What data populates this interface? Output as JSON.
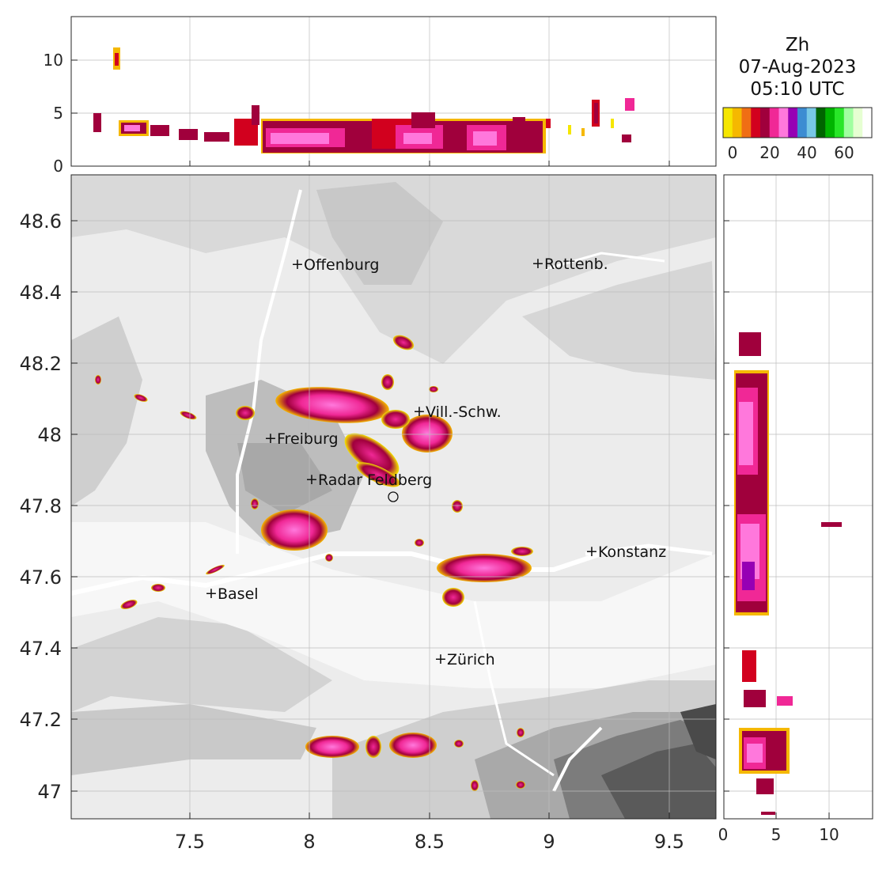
{
  "title": {
    "variable": "Zh",
    "date": "07-Aug-2023",
    "time": "05:10 UTC"
  },
  "colorbar": {
    "colors": [
      "#f5e600",
      "#f5b800",
      "#f06e14",
      "#d2001e",
      "#a0003c",
      "#f02896",
      "#ff78dc",
      "#9600b4",
      "#3c8cd2",
      "#78c8e6",
      "#006400",
      "#00b400",
      "#28e628",
      "#a0ffa0",
      "#e6ffd2",
      "#ffffff"
    ],
    "ticks": [
      "0",
      "20",
      "40",
      "60"
    ]
  },
  "map": {
    "x_ticks": [
      "7.5",
      "8",
      "8.5",
      "9",
      "9.5"
    ],
    "y_ticks": [
      "48.6",
      "48.4",
      "48.2",
      "48",
      "47.8",
      "47.6",
      "47.4",
      "47.2",
      "47"
    ],
    "cities": [
      {
        "name": "Offenburg"
      },
      {
        "name": "Rottenb."
      },
      {
        "name": "Vill.-Schw."
      },
      {
        "name": "Freiburg"
      },
      {
        "name": "Radar Feldberg"
      },
      {
        "name": "Konstanz"
      },
      {
        "name": "Basel"
      },
      {
        "name": "Zürich"
      }
    ]
  },
  "top_panel": {
    "y_ticks": [
      "10",
      "5",
      "0"
    ]
  },
  "right_panel": {
    "x_ticks": [
      "0",
      "5",
      "10"
    ]
  }
}
